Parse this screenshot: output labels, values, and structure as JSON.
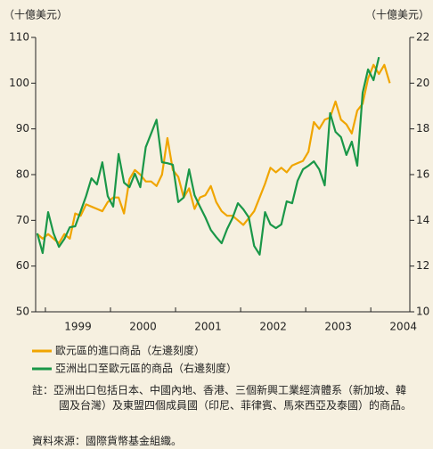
{
  "chart_data": {
    "type": "line",
    "y_label": "（十億美元）",
    "y2_label": "（十億美元）",
    "x": [
      1998.875,
      1998.958,
      1999.042,
      1999.125,
      1999.208,
      1999.292,
      1999.375,
      1999.458,
      1999.542,
      1999.625,
      1999.708,
      1999.792,
      1999.875,
      1999.958,
      2000.042,
      2000.125,
      2000.208,
      2000.292,
      2000.375,
      2000.458,
      2000.542,
      2000.625,
      2000.708,
      2000.792,
      2000.875,
      2000.958,
      2001.042,
      2001.125,
      2001.208,
      2001.292,
      2001.375,
      2001.458,
      2001.542,
      2001.625,
      2001.708,
      2001.792,
      2001.875,
      2001.958,
      2002.042,
      2002.125,
      2002.208,
      2002.292,
      2002.375,
      2002.458,
      2002.542,
      2002.625,
      2002.708,
      2002.792,
      2002.875,
      2002.958,
      2003.042,
      2003.125,
      2003.208,
      2003.292,
      2003.375,
      2003.458,
      2003.542,
      2003.625,
      2003.708,
      2003.792,
      2003.875,
      2003.958,
      2004.042,
      2004.125,
      2004.208,
      2004.292
    ],
    "xlim": [
      1998.85,
      2004.6
    ],
    "xticks": [
      1999,
      2000,
      2001,
      2002,
      2003,
      2004
    ],
    "ylim": [
      50,
      110
    ],
    "yticks": [
      50,
      60,
      70,
      80,
      90,
      100,
      110
    ],
    "y2lim": [
      10,
      22
    ],
    "y2ticks": [
      10,
      12,
      14,
      16,
      18,
      20,
      22
    ],
    "series": [
      {
        "name": "歐元區的進口商品（左邊刻度）",
        "color": "#f0a500",
        "values": [
          67,
          66,
          67,
          66,
          65,
          67,
          66,
          71.5,
          71,
          73.5,
          73,
          72.5,
          72,
          74,
          75,
          75,
          71.5,
          79,
          81,
          80,
          78.5,
          78.5,
          77.5,
          80,
          88,
          81,
          79.5,
          75,
          77,
          72.5,
          75,
          75.5,
          77.5,
          74,
          72,
          71,
          71,
          70,
          69,
          70.5,
          72,
          75,
          78,
          81.5,
          80.5,
          81.5,
          80.5,
          82,
          82.5,
          83,
          85,
          91.5,
          90,
          92,
          92.5,
          96,
          92,
          91,
          89,
          94,
          95.5,
          101,
          104,
          102,
          104,
          100
        ]
      },
      {
        "name": "亞洲出口至歐元區的商品（右邊刻度）",
        "color": "#1a9748",
        "axis": "y2",
        "values": [
          13.43,
          12.57,
          14.36,
          13.43,
          12.84,
          13.19,
          13.7,
          13.74,
          14.4,
          15.06,
          15.84,
          15.57,
          16.54,
          15.06,
          14.6,
          16.9,
          15.65,
          15.45,
          16.04,
          15.45,
          17.2,
          17.8,
          18.4,
          16.54,
          16.5,
          16.43,
          14.8,
          15.0,
          16.23,
          15.1,
          14.6,
          14.13,
          13.58,
          13.27,
          13.0,
          13.62,
          14.1,
          14.75,
          14.48,
          14.13,
          12.88,
          12.5,
          14.36,
          13.82,
          13.66,
          13.82,
          14.83,
          14.75,
          15.73,
          16.23,
          16.39,
          16.58,
          16.23,
          15.53,
          18.69,
          17.87,
          17.64,
          16.86,
          17.44,
          16.39,
          19.58,
          20.6,
          20.13,
          21.14,
          null,
          null
        ]
      }
    ],
    "note": "註：亞洲出口包括日本、中國內地、香港、三個新興工業經濟體系（新加坡、韓國及台灣）及東盟四個成員國（印尼、菲律賓、馬來西亞及泰國）的商品。",
    "source": "資料來源：國際貨幣基金組織。"
  }
}
